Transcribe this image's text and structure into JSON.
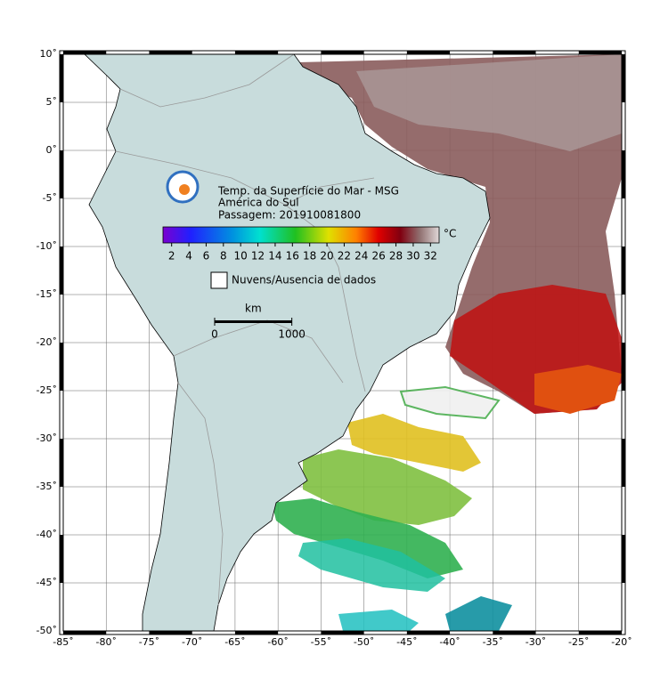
{
  "map": {
    "title": "Temp. da Superfície do Mar - MSG",
    "region": "América do Sul",
    "pass": "Passagem: 201910081800",
    "lonlim": [
      -85,
      -20
    ],
    "latlim": [
      -50,
      10
    ],
    "lon_ticks": [
      {
        "value": -85,
        "label": "-85˚"
      },
      {
        "value": -80,
        "label": "-80˚"
      },
      {
        "value": -75,
        "label": "-75˚"
      },
      {
        "value": -70,
        "label": "-70˚"
      },
      {
        "value": -65,
        "label": "-65˚"
      },
      {
        "value": -60,
        "label": "-60˚"
      },
      {
        "value": -55,
        "label": "-55˚"
      },
      {
        "value": -50,
        "label": "-50˚"
      },
      {
        "value": -45,
        "label": "-45˚"
      },
      {
        "value": -40,
        "label": "-40˚"
      },
      {
        "value": -35,
        "label": "-35˚"
      },
      {
        "value": -30,
        "label": "-30˚"
      },
      {
        "value": -25,
        "label": "-25˚"
      },
      {
        "value": -20,
        "label": "-20˚"
      }
    ],
    "lat_ticks": [
      {
        "value": 10,
        "label": "10˚"
      },
      {
        "value": 5,
        "label": "5˚"
      },
      {
        "value": 0,
        "label": "0˚"
      },
      {
        "value": -5,
        "label": "-5˚"
      },
      {
        "value": -10,
        "label": "-10˚"
      },
      {
        "value": -15,
        "label": "-15˚"
      },
      {
        "value": -20,
        "label": "-20˚"
      },
      {
        "value": -25,
        "label": "-25˚"
      },
      {
        "value": -30,
        "label": "-30˚"
      },
      {
        "value": -35,
        "label": "-35˚"
      },
      {
        "value": -40,
        "label": "-40˚"
      },
      {
        "value": -45,
        "label": "-45˚"
      },
      {
        "value": -50,
        "label": "-50˚"
      }
    ],
    "colorbar": {
      "unit": "°C",
      "range": [
        1,
        33
      ],
      "ticks": [
        2,
        4,
        6,
        8,
        10,
        12,
        14,
        16,
        18,
        20,
        22,
        24,
        26,
        28,
        30,
        32
      ]
    },
    "no_data": "Nuvens/Ausencia de dados",
    "scale": {
      "unit": "km",
      "ticks": [
        0,
        1000
      ]
    }
  }
}
